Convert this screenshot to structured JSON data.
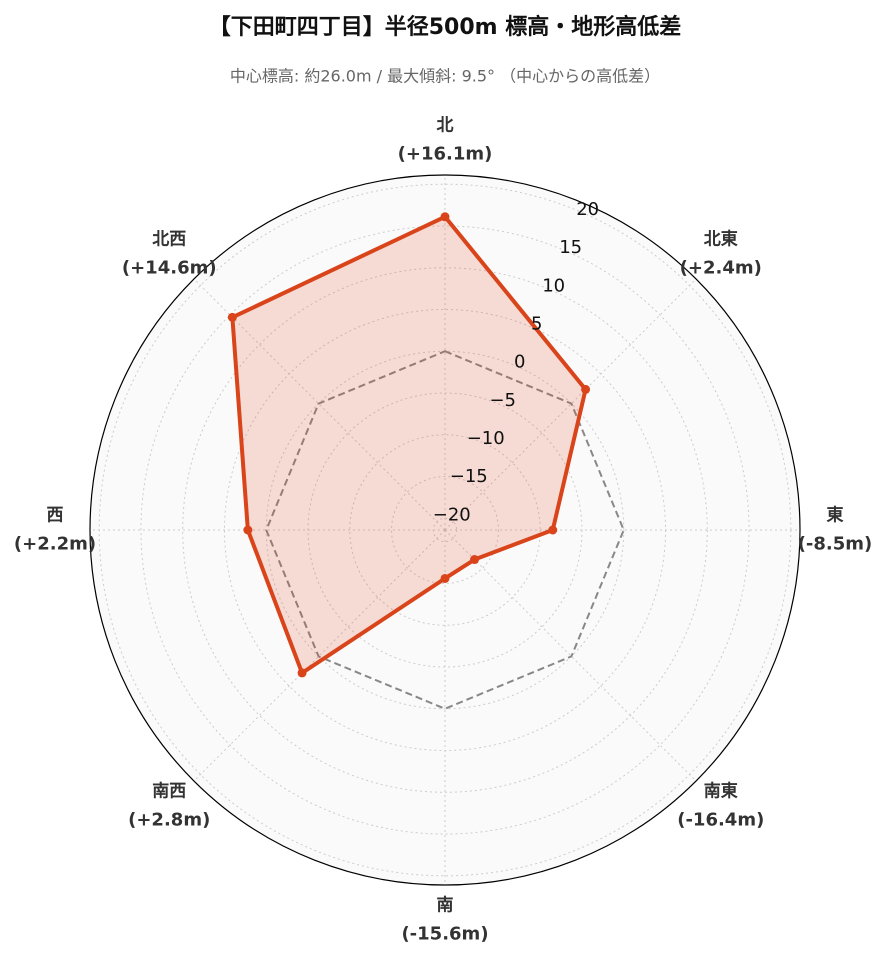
{
  "chart_data": {
    "type": "radar",
    "title": "【下田町四丁目】半径500m 標高・地形高低差",
    "subtitle": "中心標高: 約26.0m / 最大傾斜: 9.5° （中心からの高低差）",
    "categories": [
      "北",
      "北東",
      "東",
      "南東",
      "南",
      "南西",
      "西",
      "北西"
    ],
    "values": [
      16.1,
      2.4,
      -8.5,
      -16.4,
      -15.6,
      2.8,
      2.2,
      14.6
    ],
    "value_labels": [
      "(+16.1m)",
      "(+2.4m)",
      "(-8.5m)",
      "(-16.4m)",
      "(-15.6m)",
      "(+2.8m)",
      "(+2.2m)",
      "(+14.6m)"
    ],
    "color": "#d9441a",
    "ylim": [
      -21.4,
      21.1
    ],
    "yticks": [
      {
        "value": -20,
        "label": "−20"
      },
      {
        "value": -15,
        "label": "−15"
      },
      {
        "value": -10,
        "label": "−10"
      },
      {
        "value": -5,
        "label": "−5"
      },
      0,
      5,
      10,
      15,
      20
    ],
    "grid": true
  }
}
